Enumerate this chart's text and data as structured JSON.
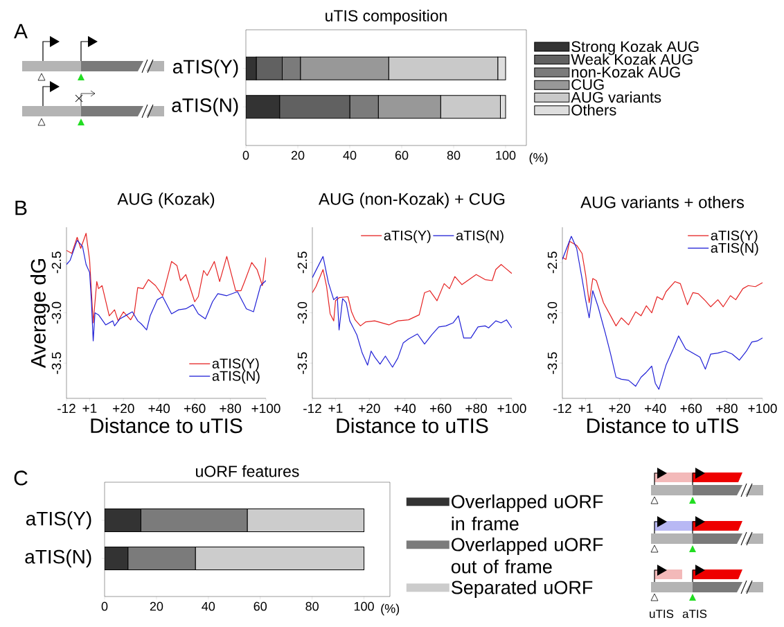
{
  "chart_data": [
    {
      "type": "bar",
      "orientation": "horizontal",
      "stacked": true,
      "title": "uTIS composition",
      "xlabel": "(%)",
      "annotations": [
        "A"
      ],
      "legend": "right",
      "categories": [
        "aTIS(Y)",
        "aTIS(N)"
      ],
      "xlim": [
        0,
        108
      ],
      "xticks": [
        0,
        20,
        40,
        60,
        80,
        100
      ],
      "series": [
        {
          "name": "Strong Kozak AUG",
          "color": "#333333",
          "values": [
            4,
            13
          ]
        },
        {
          "name": "Weak Kozak AUG",
          "color": "#616161",
          "values": [
            10,
            27
          ]
        },
        {
          "name": "non-Kozak AUG",
          "color": "#7b7b7b",
          "values": [
            7,
            11
          ]
        },
        {
          "name": "CUG",
          "color": "#989898",
          "values": [
            34,
            24
          ]
        },
        {
          "name": "AUG variants",
          "color": "#c9c9c9",
          "values": [
            42,
            23
          ]
        },
        {
          "name": "Others",
          "color": "#dedede",
          "values": [
            3,
            2
          ]
        }
      ]
    },
    {
      "type": "line",
      "title": "AUG (Kozak)",
      "xlabel": "Distance to uTIS",
      "ylabel": "Average dG",
      "annotations": [
        "B"
      ],
      "legend": "bottom right",
      "xlim": [
        -12,
        100
      ],
      "ylim": [
        -3.85,
        -2.15
      ],
      "xticks": [
        {
          "value": -12,
          "label": "-12"
        },
        {
          "value": 1,
          "label": "+1"
        },
        {
          "value": 20,
          "label": "+20"
        },
        {
          "value": 40,
          "label": "+40"
        },
        {
          "value": 60,
          "label": "+60"
        },
        {
          "value": 80,
          "label": "+80"
        },
        {
          "value": 100,
          "label": "+100"
        }
      ],
      "yticks": [
        {
          "value": -2.5,
          "label": "-2.5"
        },
        {
          "value": -3.0,
          "label": "-3.0"
        },
        {
          "value": -3.5,
          "label": "-3.5"
        }
      ],
      "series": [
        {
          "name": "aTIS(Y)",
          "color": "#e52222",
          "x": [
            -12,
            -9,
            -6,
            -4,
            -1,
            1,
            3,
            5,
            6,
            8,
            12,
            15,
            17,
            20,
            24,
            26,
            28,
            31,
            34,
            38,
            42,
            47,
            50,
            52,
            55,
            60,
            62,
            65,
            67,
            71,
            74,
            78,
            83,
            86,
            88,
            92,
            95,
            98,
            100
          ],
          "values": [
            -2.38,
            -2.41,
            -2.25,
            -2.36,
            -2.21,
            -2.48,
            -3.1,
            -2.69,
            -2.76,
            -2.73,
            -3.03,
            -2.97,
            -3.08,
            -2.99,
            -3.07,
            -3.01,
            -2.75,
            -2.76,
            -2.67,
            -2.73,
            -2.83,
            -2.49,
            -2.53,
            -2.68,
            -2.62,
            -2.89,
            -2.84,
            -2.58,
            -2.63,
            -2.49,
            -2.69,
            -2.44,
            -2.78,
            -2.78,
            -2.69,
            -2.5,
            -2.57,
            -2.73,
            -2.45
          ]
        },
        {
          "name": "aTIS(N)",
          "color": "#2020d6",
          "x": [
            -12,
            -10,
            -6,
            -3,
            -1,
            1,
            2,
            3,
            4,
            6,
            10,
            14,
            15,
            18,
            21,
            25,
            28,
            30,
            33,
            35,
            39,
            42,
            47,
            51,
            55,
            59,
            62,
            66,
            70,
            73,
            78,
            84,
            89,
            93,
            97,
            100
          ],
          "values": [
            -2.52,
            -2.48,
            -2.28,
            -2.34,
            -2.52,
            -2.6,
            -2.89,
            -3.28,
            -3.0,
            -3.02,
            -3.12,
            -3.08,
            -3.13,
            -3.06,
            -3.03,
            -2.99,
            -3.08,
            -3.11,
            -3.17,
            -3.03,
            -2.87,
            -2.84,
            -3.01,
            -2.97,
            -2.96,
            -2.92,
            -3.01,
            -3.06,
            -2.89,
            -2.81,
            -2.83,
            -2.79,
            -2.96,
            -2.99,
            -2.73,
            -2.68
          ]
        }
      ]
    },
    {
      "type": "line",
      "title": "AUG (non-Kozak) + CUG",
      "xlabel": "Distance to uTIS",
      "legend": "top",
      "xlim": [
        -12,
        100
      ],
      "ylim": [
        -3.85,
        -2.15
      ],
      "xticks": [
        {
          "value": -12,
          "label": "-12"
        },
        {
          "value": 1,
          "label": "+1"
        },
        {
          "value": 20,
          "label": "+20"
        },
        {
          "value": 40,
          "label": "+40"
        },
        {
          "value": 60,
          "label": "+60"
        },
        {
          "value": 80,
          "label": "+80"
        },
        {
          "value": 100,
          "label": "+100"
        }
      ],
      "yticks": [
        {
          "value": -2.5,
          "label": "-2.5"
        },
        {
          "value": -3.0,
          "label": "-3.0"
        },
        {
          "value": -3.5,
          "label": "-3.5"
        }
      ],
      "series": [
        {
          "name": "aTIS(Y)",
          "color": "#e52222",
          "x": [
            -12,
            -10,
            -6,
            -4,
            -2,
            0,
            1,
            3,
            8,
            10,
            12,
            15,
            18,
            23,
            31,
            36,
            42,
            48,
            51,
            54,
            58,
            62,
            65,
            68,
            72,
            76,
            80,
            85,
            89,
            91,
            94,
            96,
            100
          ],
          "values": [
            -2.8,
            -2.74,
            -2.57,
            -2.74,
            -3.01,
            -3.08,
            -2.88,
            -2.85,
            -2.84,
            -2.99,
            -3.07,
            -3.13,
            -3.09,
            -3.08,
            -3.12,
            -3.08,
            -3.07,
            -3.02,
            -2.8,
            -2.78,
            -2.88,
            -2.71,
            -2.76,
            -2.64,
            -2.72,
            -2.67,
            -2.62,
            -2.67,
            -2.68,
            -2.57,
            -2.52,
            -2.55,
            -2.61
          ]
        },
        {
          "name": "aTIS(N)",
          "color": "#2020d6",
          "x": [
            -12,
            -6,
            -3,
            0,
            2,
            3,
            5,
            7,
            9,
            13,
            16,
            19,
            21,
            23,
            26,
            29,
            33,
            36,
            39,
            42,
            47,
            51,
            55,
            59,
            63,
            67,
            70,
            73,
            77,
            81,
            85,
            87,
            91,
            94,
            97,
            100
          ],
          "values": [
            -2.65,
            -2.44,
            -2.7,
            -2.87,
            -2.84,
            -3.17,
            -2.86,
            -2.9,
            -3.08,
            -3.22,
            -3.4,
            -3.52,
            -3.38,
            -3.44,
            -3.51,
            -3.43,
            -3.54,
            -3.45,
            -3.3,
            -3.26,
            -3.21,
            -3.31,
            -3.22,
            -3.14,
            -3.13,
            -3.1,
            -3.03,
            -3.25,
            -3.25,
            -3.14,
            -3.13,
            -3.15,
            -3.08,
            -3.1,
            -3.07,
            -3.15
          ]
        }
      ]
    },
    {
      "type": "line",
      "title": "AUG variants + others",
      "xlabel": "Distance to uTIS",
      "legend": "top right",
      "xlim": [
        -12,
        100
      ],
      "ylim": [
        -3.85,
        -2.15
      ],
      "xticks": [
        {
          "value": -12,
          "label": "-12"
        },
        {
          "value": 1,
          "label": "+1"
        },
        {
          "value": 20,
          "label": "+20"
        },
        {
          "value": 40,
          "label": "+40"
        },
        {
          "value": 60,
          "label": "+60"
        },
        {
          "value": 80,
          "label": "+80"
        },
        {
          "value": 100,
          "label": "+100"
        }
      ],
      "yticks": [
        {
          "value": -2.5,
          "label": "-2.5"
        },
        {
          "value": -3.0,
          "label": "-3.0"
        },
        {
          "value": -3.5,
          "label": "-3.5"
        }
      ],
      "series": [
        {
          "name": "aTIS(Y)",
          "color": "#e52222",
          "x": [
            -12,
            -10,
            -8,
            -4,
            -1,
            1,
            3,
            5,
            7,
            11,
            15,
            18,
            21,
            25,
            29,
            32,
            35,
            38,
            41,
            44,
            46,
            51,
            54,
            58,
            61,
            64,
            68,
            71,
            75,
            78,
            82,
            85,
            89,
            92,
            96,
            100
          ],
          "values": [
            -2.45,
            -2.47,
            -2.29,
            -2.33,
            -2.41,
            -2.62,
            -2.9,
            -2.66,
            -2.68,
            -2.9,
            -3.03,
            -3.13,
            -3.05,
            -3.12,
            -2.99,
            -3.03,
            -2.93,
            -3.0,
            -2.84,
            -2.87,
            -2.79,
            -2.69,
            -2.71,
            -2.92,
            -2.8,
            -2.81,
            -2.88,
            -2.94,
            -2.87,
            -2.94,
            -2.83,
            -2.87,
            -2.76,
            -2.73,
            -2.74,
            -2.7
          ]
        },
        {
          "name": "aTIS(N)",
          "color": "#2020d6",
          "x": [
            -12,
            -7,
            -4,
            -1,
            1,
            3,
            5,
            8,
            12,
            15,
            18,
            21,
            25,
            29,
            32,
            35,
            38,
            40,
            42,
            46,
            50,
            53,
            57,
            61,
            65,
            68,
            71,
            75,
            79,
            83,
            87,
            91,
            94,
            97,
            100
          ],
          "values": [
            -2.47,
            -2.24,
            -2.36,
            -2.66,
            -2.87,
            -3.05,
            -2.78,
            -2.94,
            -3.2,
            -3.41,
            -3.64,
            -3.66,
            -3.67,
            -3.73,
            -3.64,
            -3.59,
            -3.53,
            -3.7,
            -3.76,
            -3.52,
            -3.36,
            -3.23,
            -3.36,
            -3.4,
            -3.44,
            -3.56,
            -3.41,
            -3.4,
            -3.38,
            -3.41,
            -3.47,
            -3.38,
            -3.29,
            -3.28,
            -3.25
          ]
        }
      ]
    },
    {
      "type": "bar",
      "orientation": "horizontal",
      "stacked": true,
      "title": "uORF features",
      "xlabel": "(%)",
      "annotations": [
        "C",
        "uTIS",
        "aTIS"
      ],
      "legend": "right",
      "categories": [
        "aTIS(Y)",
        "aTIS(N)"
      ],
      "xlim": [
        0,
        110
      ],
      "xticks": [
        0,
        20,
        40,
        60,
        80,
        100
      ],
      "series": [
        {
          "name": "Overlapped uORF in frame",
          "color": "#333333",
          "values": [
            14,
            9
          ]
        },
        {
          "name": "Overlapped uORF out of frame",
          "color": "#7b7b7b",
          "values": [
            41,
            26
          ]
        },
        {
          "name": "Separated uORF",
          "color": "#cccccc",
          "values": [
            45,
            65
          ]
        }
      ]
    }
  ]
}
